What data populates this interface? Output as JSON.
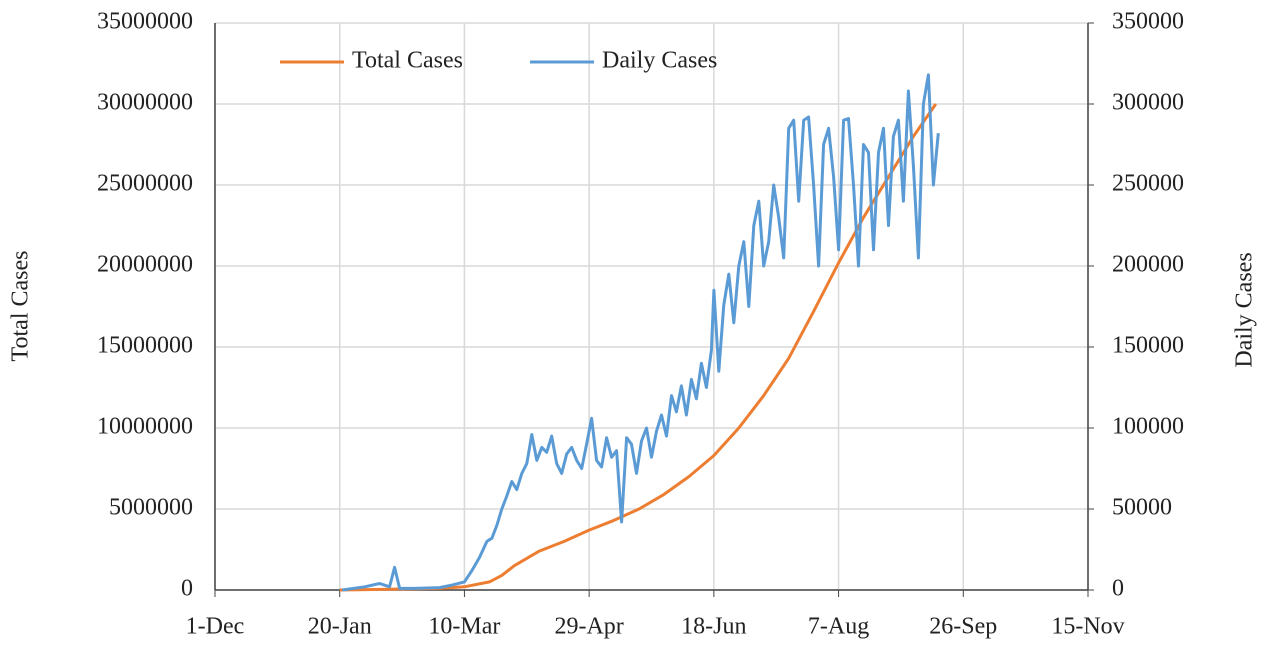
{
  "chart_data": {
    "type": "line",
    "ylabel": "Total Cases",
    "y2label": "Daily Cases",
    "xlim": [
      0,
      350
    ],
    "xticks": [
      {
        "value": 0,
        "label": "1-Dec"
      },
      {
        "value": 50,
        "label": "20-Jan"
      },
      {
        "value": 100,
        "label": "10-Mar"
      },
      {
        "value": 150,
        "label": "29-Apr"
      },
      {
        "value": 200,
        "label": "18-Jun"
      },
      {
        "value": 250,
        "label": "7-Aug"
      },
      {
        "value": 300,
        "label": "26-Sep"
      },
      {
        "value": 350,
        "label": "15-Nov"
      }
    ],
    "ylim": [
      0,
      35000000
    ],
    "yticks": [
      0,
      5000000,
      10000000,
      15000000,
      20000000,
      25000000,
      30000000,
      35000000
    ],
    "y2lim": [
      0,
      350000
    ],
    "y2ticks": [
      0,
      50000,
      100000,
      150000,
      200000,
      250000,
      300000,
      350000
    ],
    "grid": true,
    "legend": "top",
    "series": [
      {
        "name": "Total Cases",
        "color": "#ed7d31",
        "x": [
          50,
          90,
          100,
          110,
          115,
          120,
          130,
          140,
          150,
          160,
          170,
          180,
          190,
          200,
          210,
          220,
          230,
          240,
          250,
          260,
          270,
          280,
          289
        ],
        "values": [
          0,
          100000,
          200000,
          500000,
          900000,
          1500000,
          2400000,
          3000000,
          3700000,
          4300000,
          5000000,
          5900000,
          7000000,
          8300000,
          10000000,
          12000000,
          14300000,
          17200000,
          20200000,
          23000000,
          25500000,
          28000000,
          30000000
        ]
      },
      {
        "name": "Daily Cases",
        "color": "#5b9bd5",
        "axis": "y2",
        "x": [
          51,
          60,
          66,
          70,
          72,
          74,
          80,
          90,
          95,
          100,
          103,
          106,
          109,
          111,
          113,
          115,
          117,
          119,
          121,
          123,
          125,
          127,
          129,
          131,
          133,
          135,
          137,
          139,
          141,
          143,
          145,
          147,
          149,
          151,
          153,
          155,
          157,
          159,
          161,
          163,
          165,
          167,
          169,
          171,
          173,
          175,
          177,
          179,
          181,
          183,
          185,
          187,
          189,
          191,
          193,
          195,
          197,
          199,
          200,
          202,
          204,
          206,
          208,
          210,
          212,
          214,
          216,
          218,
          220,
          222,
          224,
          226,
          228,
          230,
          232,
          234,
          236,
          238,
          240,
          242,
          244,
          246,
          248,
          250,
          252,
          254,
          256,
          258,
          260,
          262,
          264,
          266,
          268,
          270,
          272,
          274,
          276,
          278,
          280,
          282,
          284,
          286,
          288,
          290
        ],
        "values": [
          0,
          2000,
          4000,
          2000,
          14000,
          1000,
          1000,
          1500,
          3000,
          5000,
          12000,
          20000,
          30000,
          32000,
          40000,
          50000,
          58000,
          67000,
          62000,
          72000,
          78000,
          96000,
          80000,
          88000,
          85000,
          95000,
          78000,
          72000,
          84000,
          88000,
          80000,
          75000,
          90000,
          106000,
          80000,
          76000,
          94000,
          82000,
          86000,
          42000,
          94000,
          90000,
          72000,
          92000,
          100000,
          82000,
          98000,
          108000,
          95000,
          120000,
          110000,
          126000,
          108000,
          130000,
          118000,
          140000,
          125000,
          148000,
          185000,
          135000,
          176000,
          195000,
          165000,
          200000,
          215000,
          175000,
          225000,
          240000,
          200000,
          215000,
          250000,
          230000,
          205000,
          285000,
          290000,
          240000,
          290000,
          292000,
          250000,
          200000,
          275000,
          285000,
          255000,
          210000,
          290000,
          291000,
          250000,
          200000,
          275000,
          270000,
          210000,
          270000,
          285000,
          225000,
          280000,
          290000,
          240000,
          308000,
          262000,
          205000,
          300000,
          318000,
          250000,
          282000
        ]
      }
    ]
  }
}
